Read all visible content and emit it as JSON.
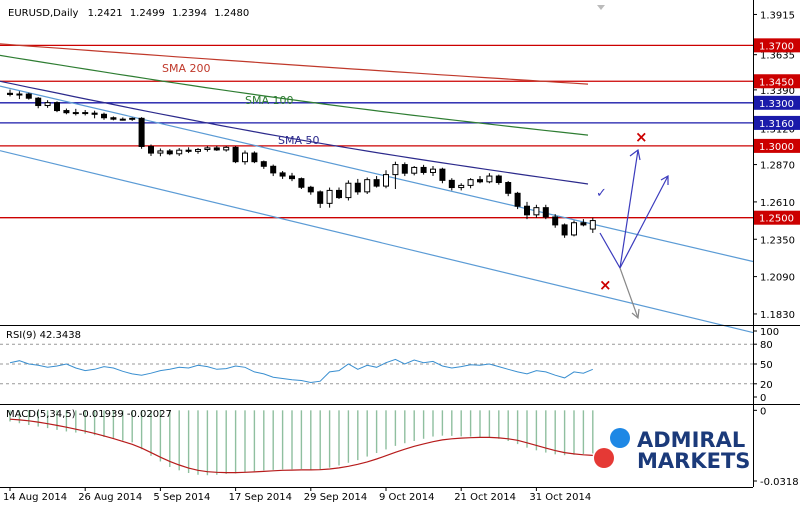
{
  "chart_data": {
    "type": "candlestick",
    "header": {
      "symbol": "EURUSD,Daily",
      "ohlc": [
        "1.2421",
        "1.2499",
        "1.2394",
        "1.2480"
      ]
    },
    "price_axis": {
      "range": [
        1.176,
        1.396
      ],
      "ticks": [
        "1.3915",
        "1.3635",
        "1.3390",
        "1.3120",
        "1.2870",
        "1.2610",
        "1.2350",
        "1.2090",
        "1.1830"
      ]
    },
    "time_axis": {
      "labels": [
        "14 Aug 2014",
        "26 Aug 2014",
        "5 Sep 2014",
        "17 Sep 2014",
        "29 Sep 2014",
        "9 Oct 2014",
        "21 Oct 2014",
        "31 Oct 2014"
      ],
      "label_index": [
        0,
        8,
        16,
        24,
        32,
        40,
        48,
        56
      ]
    },
    "candles": [
      {
        "o": 1.3366,
        "h": 1.3392,
        "l": 1.3345,
        "c": 1.3358
      },
      {
        "o": 1.3358,
        "h": 1.338,
        "l": 1.3326,
        "c": 1.3361
      },
      {
        "o": 1.3361,
        "h": 1.337,
        "l": 1.3322,
        "c": 1.3332
      },
      {
        "o": 1.3332,
        "h": 1.334,
        "l": 1.3262,
        "c": 1.3281
      },
      {
        "o": 1.3281,
        "h": 1.3318,
        "l": 1.3265,
        "c": 1.3301
      },
      {
        "o": 1.3301,
        "h": 1.331,
        "l": 1.3235,
        "c": 1.3246
      },
      {
        "o": 1.3246,
        "h": 1.326,
        "l": 1.322,
        "c": 1.3231
      },
      {
        "o": 1.3231,
        "h": 1.3258,
        "l": 1.3212,
        "c": 1.3232
      },
      {
        "o": 1.3232,
        "h": 1.325,
        "l": 1.3212,
        "c": 1.3228
      },
      {
        "o": 1.3228,
        "h": 1.3245,
        "l": 1.3192,
        "c": 1.322
      },
      {
        "o": 1.322,
        "h": 1.3232,
        "l": 1.3182,
        "c": 1.3196
      },
      {
        "o": 1.3196,
        "h": 1.3205,
        "l": 1.3178,
        "c": 1.3186
      },
      {
        "o": 1.3186,
        "h": 1.3198,
        "l": 1.3176,
        "c": 1.3186
      },
      {
        "o": 1.3186,
        "h": 1.3198,
        "l": 1.3174,
        "c": 1.3192
      },
      {
        "o": 1.3192,
        "h": 1.32,
        "l": 1.298,
        "c": 1.2996
      },
      {
        "o": 1.2996,
        "h": 1.301,
        "l": 1.293,
        "c": 1.295
      },
      {
        "o": 1.295,
        "h": 1.2982,
        "l": 1.2928,
        "c": 1.2965
      },
      {
        "o": 1.2965,
        "h": 1.2978,
        "l": 1.2935,
        "c": 1.2945
      },
      {
        "o": 1.2945,
        "h": 1.2985,
        "l": 1.293,
        "c": 1.297
      },
      {
        "o": 1.297,
        "h": 1.299,
        "l": 1.295,
        "c": 1.2962
      },
      {
        "o": 1.2962,
        "h": 1.2985,
        "l": 1.2945,
        "c": 1.2975
      },
      {
        "o": 1.2975,
        "h": 1.2998,
        "l": 1.296,
        "c": 1.2986
      },
      {
        "o": 1.2986,
        "h": 1.3,
        "l": 1.2965,
        "c": 1.2972
      },
      {
        "o": 1.2972,
        "h": 1.2998,
        "l": 1.296,
        "c": 1.299
      },
      {
        "o": 1.299,
        "h": 1.2998,
        "l": 1.288,
        "c": 1.289
      },
      {
        "o": 1.289,
        "h": 1.2968,
        "l": 1.287,
        "c": 1.295
      },
      {
        "o": 1.295,
        "h": 1.2962,
        "l": 1.288,
        "c": 1.289
      },
      {
        "o": 1.289,
        "h": 1.2898,
        "l": 1.284,
        "c": 1.2858
      },
      {
        "o": 1.2858,
        "h": 1.287,
        "l": 1.279,
        "c": 1.2812
      },
      {
        "o": 1.2812,
        "h": 1.2825,
        "l": 1.277,
        "c": 1.279
      },
      {
        "o": 1.279,
        "h": 1.2812,
        "l": 1.2755,
        "c": 1.2772
      },
      {
        "o": 1.2772,
        "h": 1.278,
        "l": 1.27,
        "c": 1.2712
      },
      {
        "o": 1.2712,
        "h": 1.2722,
        "l": 1.266,
        "c": 1.268
      },
      {
        "o": 1.268,
        "h": 1.269,
        "l": 1.2568,
        "c": 1.26
      },
      {
        "o": 1.26,
        "h": 1.271,
        "l": 1.257,
        "c": 1.269
      },
      {
        "o": 1.269,
        "h": 1.271,
        "l": 1.263,
        "c": 1.264
      },
      {
        "o": 1.264,
        "h": 1.276,
        "l": 1.262,
        "c": 1.274
      },
      {
        "o": 1.274,
        "h": 1.277,
        "l": 1.266,
        "c": 1.268
      },
      {
        "o": 1.268,
        "h": 1.278,
        "l": 1.2665,
        "c": 1.2765
      },
      {
        "o": 1.2765,
        "h": 1.279,
        "l": 1.271,
        "c": 1.272
      },
      {
        "o": 1.272,
        "h": 1.283,
        "l": 1.2705,
        "c": 1.28
      },
      {
        "o": 1.28,
        "h": 1.289,
        "l": 1.27,
        "c": 1.287
      },
      {
        "o": 1.287,
        "h": 1.2885,
        "l": 1.279,
        "c": 1.281
      },
      {
        "o": 1.281,
        "h": 1.286,
        "l": 1.2795,
        "c": 1.285
      },
      {
        "o": 1.285,
        "h": 1.2868,
        "l": 1.28,
        "c": 1.2815
      },
      {
        "o": 1.2815,
        "h": 1.286,
        "l": 1.279,
        "c": 1.2838
      },
      {
        "o": 1.2838,
        "h": 1.2848,
        "l": 1.274,
        "c": 1.276
      },
      {
        "o": 1.276,
        "h": 1.2775,
        "l": 1.269,
        "c": 1.271
      },
      {
        "o": 1.271,
        "h": 1.274,
        "l": 1.269,
        "c": 1.2725
      },
      {
        "o": 1.2725,
        "h": 1.2775,
        "l": 1.2705,
        "c": 1.2765
      },
      {
        "o": 1.2765,
        "h": 1.279,
        "l": 1.274,
        "c": 1.275
      },
      {
        "o": 1.275,
        "h": 1.281,
        "l": 1.274,
        "c": 1.279
      },
      {
        "o": 1.279,
        "h": 1.28,
        "l": 1.273,
        "c": 1.2745
      },
      {
        "o": 1.2745,
        "h": 1.2755,
        "l": 1.265,
        "c": 1.267
      },
      {
        "o": 1.267,
        "h": 1.268,
        "l": 1.256,
        "c": 1.258
      },
      {
        "o": 1.258,
        "h": 1.261,
        "l": 1.249,
        "c": 1.252
      },
      {
        "o": 1.252,
        "h": 1.259,
        "l": 1.25,
        "c": 1.257
      },
      {
        "o": 1.257,
        "h": 1.259,
        "l": 1.249,
        "c": 1.2505
      },
      {
        "o": 1.2505,
        "h": 1.2525,
        "l": 1.243,
        "c": 1.245
      },
      {
        "o": 1.245,
        "h": 1.246,
        "l": 1.236,
        "c": 1.238
      },
      {
        "o": 1.238,
        "h": 1.248,
        "l": 1.237,
        "c": 1.2465
      },
      {
        "o": 1.2465,
        "h": 1.249,
        "l": 1.244,
        "c": 1.245
      },
      {
        "o": 1.2421,
        "h": 1.2499,
        "l": 1.2394,
        "c": 1.248
      }
    ],
    "moving_averages": [
      {
        "name": "SMA 200",
        "color": "#c0392b",
        "start": 1.371,
        "end": 1.343
      },
      {
        "name": "SMA 100",
        "color": "#2e7d32",
        "start": 1.363,
        "end": 1.3075
      },
      {
        "name": "SMA 50",
        "color": "#2c2a8c",
        "start": 1.345,
        "end": 1.2735
      }
    ],
    "channel": {
      "color": "#5b9bd5",
      "upper": {
        "start": 1.34,
        "end": 1.2455
      },
      "lower": {
        "start": 1.295,
        "end": 1.197
      }
    },
    "levels": [
      {
        "value": 1.37,
        "label": "1.3700",
        "color": "#cc0000"
      },
      {
        "value": 1.345,
        "label": "1.3450",
        "color": "#cc0000"
      },
      {
        "value": 1.33,
        "label": "1.3300",
        "color": "#1a1aaa"
      },
      {
        "value": 1.316,
        "label": "1.3160",
        "color": "#1a1aaa"
      },
      {
        "value": 1.3,
        "label": "1.3000",
        "color": "#cc0000"
      },
      {
        "value": 1.25,
        "label": "1.2500",
        "color": "#cc0000"
      }
    ],
    "scenarios": {
      "check_mark": "✓",
      "cross_mark": "×",
      "bull_color": "#3b3bbd",
      "bear_color": "#888888",
      "cross_color": "#cc0000"
    },
    "rsi": {
      "label": "RSI(9) 42.3438",
      "ticks": [
        "100",
        "80",
        "50",
        "20",
        "0"
      ],
      "levels": [
        80,
        50,
        20
      ],
      "values": [
        52,
        55,
        50,
        48,
        45,
        47,
        50,
        44,
        40,
        42,
        46,
        44,
        39,
        35,
        33,
        36,
        40,
        42,
        45,
        44,
        48,
        46,
        42,
        43,
        47,
        45,
        38,
        35,
        30,
        28,
        26,
        25,
        22,
        24,
        38,
        40,
        50,
        42,
        48,
        45,
        52,
        57,
        50,
        56,
        52,
        54,
        47,
        44,
        46,
        49,
        48,
        50,
        46,
        42,
        38,
        35,
        40,
        38,
        33,
        29,
        38,
        36,
        42
      ]
    },
    "macd": {
      "label": "MACD(5,34,5) -0.01939 -0.02027",
      "ticks": [
        "0",
        "-0.0318"
      ],
      "range": [
        -0.0318,
        0.0015
      ],
      "histogram": [
        -0.005,
        -0.0058,
        -0.0066,
        -0.0073,
        -0.008,
        -0.0088,
        -0.0095,
        -0.01,
        -0.0105,
        -0.0112,
        -0.012,
        -0.0128,
        -0.0136,
        -0.0144,
        -0.0175,
        -0.0205,
        -0.023,
        -0.0255,
        -0.027,
        -0.0282,
        -0.029,
        -0.0292,
        -0.029,
        -0.0286,
        -0.0284,
        -0.0279,
        -0.0274,
        -0.027,
        -0.0268,
        -0.0266,
        -0.0265,
        -0.0264,
        -0.0266,
        -0.0268,
        -0.0258,
        -0.0248,
        -0.0236,
        -0.0224,
        -0.0208,
        -0.0192,
        -0.0176,
        -0.016,
        -0.0148,
        -0.0138,
        -0.0128,
        -0.0118,
        -0.0114,
        -0.0115,
        -0.0117,
        -0.0118,
        -0.012,
        -0.0122,
        -0.0128,
        -0.0138,
        -0.0152,
        -0.0168,
        -0.018,
        -0.019,
        -0.0198,
        -0.0202,
        -0.02,
        -0.0197,
        -0.0194
      ],
      "signal": [
        -0.004,
        -0.0043,
        -0.0047,
        -0.0053,
        -0.006,
        -0.0068,
        -0.0076,
        -0.0085,
        -0.0094,
        -0.0104,
        -0.0115,
        -0.0127,
        -0.014,
        -0.0153,
        -0.017,
        -0.019,
        -0.0211,
        -0.023,
        -0.0246,
        -0.026,
        -0.027,
        -0.0276,
        -0.0279,
        -0.028,
        -0.028,
        -0.0279,
        -0.0277,
        -0.0275,
        -0.0272,
        -0.027,
        -0.0269,
        -0.0268,
        -0.0268,
        -0.0267,
        -0.0264,
        -0.0259,
        -0.0252,
        -0.0243,
        -0.0232,
        -0.0219,
        -0.0204,
        -0.0189,
        -0.0175,
        -0.0162,
        -0.0151,
        -0.0141,
        -0.0133,
        -0.0128,
        -0.0125,
        -0.0123,
        -0.0122,
        -0.0122,
        -0.0124,
        -0.0128,
        -0.0135,
        -0.0146,
        -0.0158,
        -0.017,
        -0.0181,
        -0.019,
        -0.0196,
        -0.02,
        -0.0203
      ]
    },
    "logo": {
      "line1": "ADMIRAL",
      "line2": "MARKETS",
      "text_color": "#1b3a7a",
      "dot_blue": "#1e88e5",
      "dot_red": "#e53935"
    }
  }
}
